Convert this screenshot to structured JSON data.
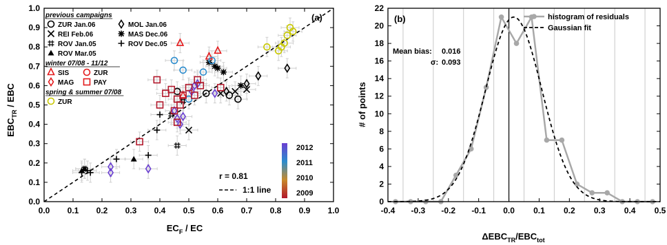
{
  "chart_data": [
    {
      "panel": "(a)",
      "type": "scatter",
      "title": "",
      "xlabel": "EC",
      "xlabel_sub": "F",
      "xlabel_rest": " / EC",
      "ylabel": "EBC",
      "ylabel_sub": "TR",
      "ylabel_rest": " / EBC",
      "xlim": [
        0,
        1.0
      ],
      "ylim": [
        0,
        1.0
      ],
      "x_ticks": [
        "0.0",
        "0.1",
        "0.2",
        "0.3",
        "0.4",
        "0.5",
        "0.6",
        "0.7",
        "0.8",
        "0.9",
        "1.0"
      ],
      "y_ticks": [
        "0.0",
        "0.1",
        "0.2",
        "0.3",
        "0.4",
        "0.5",
        "0.6",
        "0.7",
        "0.8",
        "0.9",
        "1.0"
      ],
      "grid": false,
      "one_to_one_line": true,
      "annotation_r": "r = 0.81",
      "legend_line_label": "1:1 line",
      "legend_groups": [
        {
          "heading": "previous campaigns",
          "entries": [
            {
              "symbol": "circle",
              "label": "ZUR Jan.06"
            },
            {
              "symbol": "diamond",
              "label": "MOL Jan.06"
            },
            {
              "symbol": "x",
              "label": "REI  Feb.06"
            },
            {
              "symbol": "asterisk",
              "label": "MAS Dec.06"
            },
            {
              "symbol": "hash",
              "label": "ROV Jan.05"
            },
            {
              "symbol": "plus",
              "label": "ROV Dec.05"
            },
            {
              "symbol": "triangle-filled",
              "label": "ROV Mar.05"
            }
          ]
        },
        {
          "heading": "winter 07/08 - 11/12",
          "entries": [
            {
              "symbol": "triangle",
              "label": "SIS",
              "color": "#e31a1c"
            },
            {
              "symbol": "circle",
              "label": "ZUR",
              "color": "#e31a1c"
            },
            {
              "symbol": "diamond",
              "label": "MAG",
              "color": "#e31a1c"
            },
            {
              "symbol": "square",
              "label": "PAY",
              "color": "#e31a1c"
            }
          ]
        },
        {
          "heading": "spring & summer 07/08",
          "entries": [
            {
              "symbol": "circle",
              "label": "ZUR",
              "color": "#c8c800"
            }
          ]
        }
      ],
      "colorbar": {
        "labels": [
          "2012",
          "2011",
          "2010",
          "2009"
        ],
        "colors": [
          "#6a3fd1",
          "#2b8ccd",
          "#c78a2c",
          "#b2182b"
        ]
      },
      "series": [
        {
          "name": "ZUR Jan.06",
          "marker": "circle",
          "color": "#000000",
          "points": [
            [
              0.67,
              0.53
            ],
            [
              0.64,
              0.55
            ],
            [
              0.56,
              0.56
            ],
            [
              0.46,
              0.57
            ]
          ]
        },
        {
          "name": "MOL Jan.06",
          "marker": "diamond",
          "color": "#000000",
          "points": [
            [
              0.84,
              0.69
            ],
            [
              0.74,
              0.65
            ],
            [
              0.7,
              0.61
            ],
            [
              0.63,
              0.57
            ]
          ]
        },
        {
          "name": "REI Feb.06",
          "marker": "x",
          "color": "#000000",
          "points": [
            [
              0.66,
              0.57
            ],
            [
              0.5,
              0.37
            ],
            [
              0.61,
              0.56
            ],
            [
              0.7,
              0.58
            ]
          ]
        },
        {
          "name": "MAS Dec.06",
          "marker": "asterisk",
          "color": "#000000",
          "points": [
            [
              0.6,
              0.69
            ],
            [
              0.57,
              0.72
            ],
            [
              0.68,
              0.6
            ],
            [
              0.62,
              0.67
            ],
            [
              0.59,
              0.7
            ]
          ]
        },
        {
          "name": "ROV Jan.05",
          "marker": "hash",
          "color": "#000000",
          "points": [
            [
              0.46,
              0.29
            ],
            [
              0.48,
              0.52
            ],
            [
              0.14,
              0.17
            ],
            [
              0.44,
              0.45
            ]
          ]
        },
        {
          "name": "ROV Dec.05",
          "marker": "plus",
          "color": "#000000",
          "points": [
            [
              0.16,
              0.15
            ],
            [
              0.25,
              0.22
            ],
            [
              0.36,
              0.24
            ],
            [
              0.4,
              0.45
            ],
            [
              0.39,
              0.37
            ],
            [
              0.13,
              0.15
            ],
            [
              0.15,
              0.16
            ]
          ]
        },
        {
          "name": "ROV Mar.05",
          "marker": "triangle-filled",
          "color": "#000000",
          "points": [
            [
              0.13,
              0.16
            ],
            [
              0.31,
              0.22
            ],
            [
              0.14,
              0.17
            ]
          ]
        },
        {
          "name": "SIS",
          "marker": "triangle",
          "color": "#e31a1c",
          "points": [
            [
              0.47,
              0.82
            ],
            [
              0.6,
              0.78
            ],
            [
              0.57,
              0.75
            ],
            [
              0.48,
              0.55
            ]
          ]
        },
        {
          "name": "ZUR (winter)",
          "marker": "circle",
          "color": "#2b8ccd",
          "points": [
            [
              0.45,
              0.73
            ],
            [
              0.58,
              0.73
            ],
            [
              0.5,
              0.53
            ],
            [
              0.55,
              0.67
            ],
            [
              0.48,
              0.68
            ]
          ]
        },
        {
          "name": "MAG",
          "marker": "diamond",
          "color": "#6a3fd1",
          "points": [
            [
              0.23,
              0.15
            ],
            [
              0.36,
              0.17
            ],
            [
              0.23,
              0.18
            ],
            [
              0.53,
              0.61
            ],
            [
              0.52,
              0.6
            ],
            [
              0.59,
              0.56
            ],
            [
              0.45,
              0.47
            ],
            [
              0.47,
              0.4
            ],
            [
              0.51,
              0.57
            ],
            [
              0.48,
              0.44
            ],
            [
              0.46,
              0.43
            ]
          ]
        },
        {
          "name": "PAY",
          "marker": "square",
          "color": "#b2182b",
          "points": [
            [
              0.39,
              0.63
            ],
            [
              0.33,
              0.31
            ],
            [
              0.46,
              0.41
            ],
            [
              0.46,
              0.53
            ],
            [
              0.47,
              0.5
            ],
            [
              0.42,
              0.56
            ],
            [
              0.4,
              0.5
            ],
            [
              0.48,
              0.55
            ],
            [
              0.45,
              0.47
            ],
            [
              0.53,
              0.63
            ],
            [
              0.5,
              0.59
            ],
            [
              0.52,
              0.55
            ],
            [
              0.44,
              0.58
            ],
            [
              0.61,
              0.59
            ],
            [
              0.54,
              0.6
            ]
          ]
        },
        {
          "name": "ZUR (spring & summer)",
          "marker": "circle",
          "color": "#c8c800",
          "points": [
            [
              0.85,
              0.9
            ],
            [
              0.84,
              0.86
            ],
            [
              0.86,
              0.88
            ],
            [
              0.77,
              0.8
            ],
            [
              0.81,
              0.78
            ],
            [
              0.82,
              0.8
            ],
            [
              0.83,
              0.82
            ]
          ]
        }
      ]
    },
    {
      "panel": "(b)",
      "type": "line",
      "title": "",
      "xlabel": "ΔEBC",
      "xlabel_sub1": "TR",
      "xlabel_mid": "/EBC",
      "xlabel_sub2": "tot",
      "ylabel": "# of points",
      "xlim": [
        -0.4,
        0.5
      ],
      "ylim": [
        0,
        22
      ],
      "x_ticks": [
        "-0.4",
        "-0.3",
        "-0.2",
        "-0.1",
        "0.0",
        "0.1",
        "0.2",
        "0.3",
        "0.4",
        "0.5"
      ],
      "y_ticks": [
        "0",
        "2",
        "4",
        "6",
        "8",
        "10",
        "12",
        "14",
        "16",
        "18",
        "20",
        "22"
      ],
      "grid": "vertical",
      "legend_position": "top-right",
      "annotations": {
        "mean_bias_label": "Mean bias:",
        "mean_bias_value": "0.016",
        "sigma_label": "σ:",
        "sigma_value": "0.093"
      },
      "series": [
        {
          "name": "histogram of residuals",
          "color": "#a8a8a8",
          "x": [
            -0.375,
            -0.325,
            -0.275,
            -0.225,
            -0.175,
            -0.125,
            -0.075,
            -0.025,
            0.025,
            0.075,
            0.125,
            0.175,
            0.225,
            0.275,
            0.325,
            0.375,
            0.425,
            0.475
          ],
          "y": [
            0,
            0,
            0,
            0,
            3,
            6,
            13,
            21,
            18,
            21,
            7,
            7,
            2,
            1,
            1,
            0,
            0,
            0
          ]
        },
        {
          "name": "Gaussian fit",
          "color": "#000000",
          "style": "dashed",
          "mean": 0.016,
          "sigma": 0.093,
          "peak": 21
        }
      ]
    }
  ]
}
